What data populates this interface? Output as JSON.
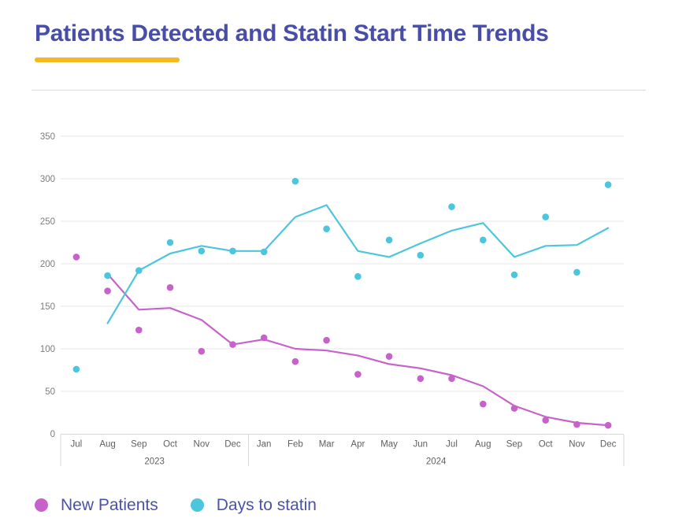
{
  "page": {
    "title": "Patients Detected and Statin Start Time Trends",
    "title_color": "#474DA8",
    "underline_color": "#F5B91D",
    "divider_color": "#DCDCDC",
    "background": "#FFFFFF"
  },
  "legend": {
    "text_color": "#4A52AB",
    "items": [
      {
        "label": "New Patients",
        "color": "#C862CB"
      },
      {
        "label": "Days to statin",
        "color": "#4DC6DD"
      }
    ]
  },
  "chart_data": {
    "type": "scatter",
    "title": "Patients Detected and Statin Start Time Trends",
    "xlabel": "",
    "ylabel": "",
    "grid": true,
    "legend_position": "bottom-left",
    "ylim": [
      0,
      370
    ],
    "y_ticks": [
      0,
      50,
      100,
      150,
      200,
      250,
      300,
      350
    ],
    "categories": [
      "Jul",
      "Aug",
      "Sep",
      "Oct",
      "Nov",
      "Dec",
      "Jan",
      "Feb",
      "Mar",
      "Apr",
      "May",
      "Jun",
      "Jul",
      "Aug",
      "Sep",
      "Oct",
      "Nov",
      "Dec"
    ],
    "year_groups": [
      {
        "label": "2023",
        "span": 6
      },
      {
        "label": "2024",
        "span": 12
      }
    ],
    "series": [
      {
        "name": "New Patients",
        "color": "#C862CB",
        "points": [
          208,
          168,
          122,
          172,
          97,
          105,
          113,
          85,
          110,
          70,
          91,
          65,
          65,
          35,
          30,
          16,
          11,
          10
        ],
        "trend": [
          null,
          188,
          146,
          148,
          134,
          105,
          111,
          100,
          98,
          92,
          82,
          77,
          69,
          56,
          33,
          20,
          13,
          10
        ]
      },
      {
        "name": "Days to statin",
        "color": "#4DC6DD",
        "points": [
          76,
          186,
          192,
          225,
          215,
          215,
          214,
          297,
          241,
          185,
          228,
          210,
          267,
          228,
          187,
          255,
          190,
          293
        ],
        "trend": [
          null,
          130,
          192,
          212,
          221,
          215,
          215,
          255,
          269,
          215,
          208,
          224,
          239,
          248,
          208,
          221,
          222,
          242
        ]
      }
    ],
    "axis_colors": {
      "gridline": "#E7E7E7",
      "band_line": "#D8D8D8",
      "y_tick_text": "#7C7C7C",
      "x_tick_text": "#5F5F5F"
    }
  }
}
